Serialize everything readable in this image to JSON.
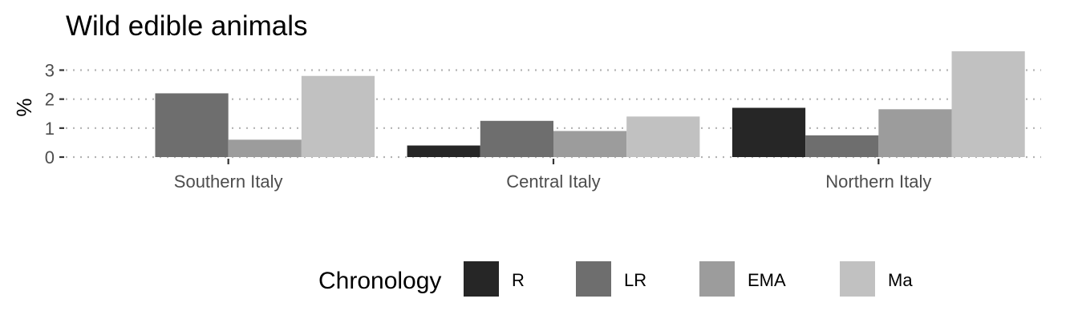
{
  "chart_data": {
    "type": "bar",
    "title": "Wild edible animals",
    "xlabel": "",
    "ylabel": "%",
    "categories": [
      "Southern Italy",
      "Central Italy",
      "Northern Italy"
    ],
    "series": [
      {
        "name": "R",
        "color": "#262626",
        "values": [
          0,
          0.4,
          1.7
        ]
      },
      {
        "name": "LR",
        "color": "#6e6e6e",
        "values": [
          2.2,
          1.25,
          0.75
        ]
      },
      {
        "name": "EMA",
        "color": "#9c9c9c",
        "values": [
          0.6,
          0.9,
          1.65
        ]
      },
      {
        "name": "Ma",
        "color": "#c1c1c1",
        "values": [
          2.8,
          1.4,
          3.65
        ]
      }
    ],
    "ylim": [
      0,
      3.65
    ],
    "yticks": [
      0,
      1,
      2,
      3
    ],
    "grid": "dotted horizontal",
    "legend": {
      "title": "Chronology",
      "placement": "bottom"
    }
  }
}
